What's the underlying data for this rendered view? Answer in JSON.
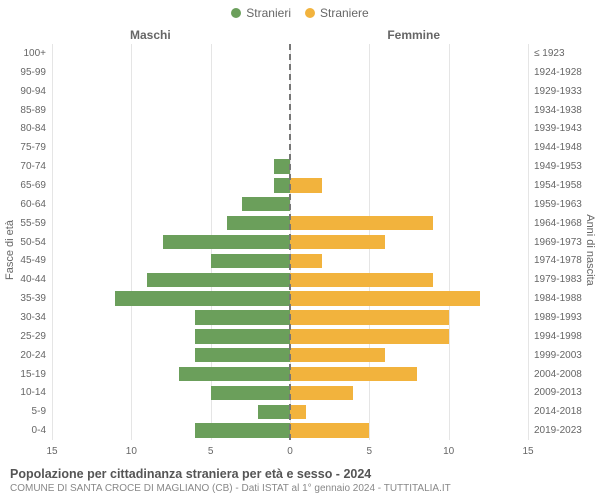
{
  "legend": {
    "male": {
      "label": "Stranieri",
      "color": "#6b9f5b"
    },
    "female": {
      "label": "Straniere",
      "color": "#f2b33d"
    }
  },
  "headers": {
    "male": "Maschi",
    "female": "Femmine"
  },
  "axis_labels": {
    "left": "Fasce di età",
    "right": "Anni di nascita"
  },
  "x_ticks": [
    15,
    10,
    5,
    0,
    5,
    10,
    15
  ],
  "x_max": 15,
  "rows": [
    {
      "age": "100+",
      "birth": "≤ 1923",
      "m": 0,
      "f": 0
    },
    {
      "age": "95-99",
      "birth": "1924-1928",
      "m": 0,
      "f": 0
    },
    {
      "age": "90-94",
      "birth": "1929-1933",
      "m": 0,
      "f": 0
    },
    {
      "age": "85-89",
      "birth": "1934-1938",
      "m": 0,
      "f": 0
    },
    {
      "age": "80-84",
      "birth": "1939-1943",
      "m": 0,
      "f": 0
    },
    {
      "age": "75-79",
      "birth": "1944-1948",
      "m": 0,
      "f": 0
    },
    {
      "age": "70-74",
      "birth": "1949-1953",
      "m": 1,
      "f": 0
    },
    {
      "age": "65-69",
      "birth": "1954-1958",
      "m": 1,
      "f": 2
    },
    {
      "age": "60-64",
      "birth": "1959-1963",
      "m": 3,
      "f": 0
    },
    {
      "age": "55-59",
      "birth": "1964-1968",
      "m": 4,
      "f": 9
    },
    {
      "age": "50-54",
      "birth": "1969-1973",
      "m": 8,
      "f": 6
    },
    {
      "age": "45-49",
      "birth": "1974-1978",
      "m": 5,
      "f": 2
    },
    {
      "age": "40-44",
      "birth": "1979-1983",
      "m": 9,
      "f": 9
    },
    {
      "age": "35-39",
      "birth": "1984-1988",
      "m": 11,
      "f": 12
    },
    {
      "age": "30-34",
      "birth": "1989-1993",
      "m": 6,
      "f": 10
    },
    {
      "age": "25-29",
      "birth": "1994-1998",
      "m": 6,
      "f": 10
    },
    {
      "age": "20-24",
      "birth": "1999-2003",
      "m": 6,
      "f": 6
    },
    {
      "age": "15-19",
      "birth": "2004-2008",
      "m": 7,
      "f": 8
    },
    {
      "age": "10-14",
      "birth": "2009-2013",
      "m": 5,
      "f": 4
    },
    {
      "age": "5-9",
      "birth": "2014-2018",
      "m": 2,
      "f": 1
    },
    {
      "age": "0-4",
      "birth": "2019-2023",
      "m": 6,
      "f": 5
    }
  ],
  "grid_color": "#e5e5e5",
  "background_color": "#ffffff",
  "caption": {
    "line1": "Popolazione per cittadinanza straniera per età e sesso - 2024",
    "line2": "COMUNE DI SANTA CROCE DI MAGLIANO (CB) - Dati ISTAT al 1° gennaio 2024 - TUTTITALIA.IT"
  }
}
